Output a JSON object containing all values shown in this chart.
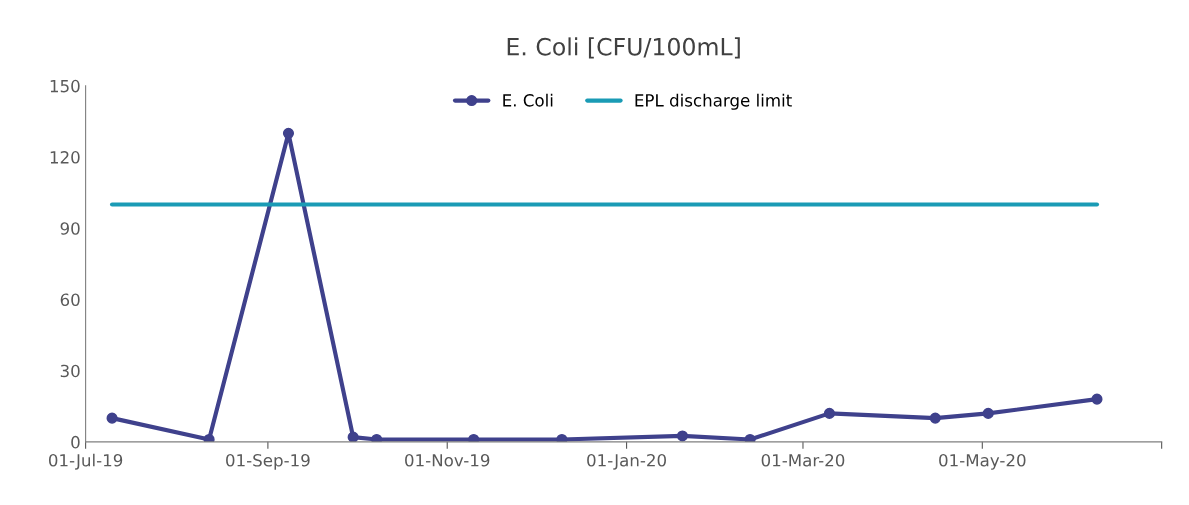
{
  "chart_data": {
    "type": "line",
    "title": "E. Coli [CFU/100mL]",
    "x": [
      "2019-07-10",
      "2019-08-12",
      "2019-09-08",
      "2019-09-30",
      "2019-10-08",
      "2019-11-10",
      "2019-12-10",
      "2020-01-20",
      "2020-02-12",
      "2020-03-10",
      "2020-04-15",
      "2020-05-03",
      "2020-06-09"
    ],
    "series": [
      {
        "name": "E. Coli",
        "color": "#3f418c",
        "marker": "circle",
        "values": [
          10,
          1,
          130,
          2,
          1,
          1,
          1,
          2.5,
          1,
          12,
          10,
          12,
          18
        ]
      },
      {
        "name": "EPL discharge limit",
        "color": "#1a9bb5",
        "marker": "none",
        "x": [
          "2019-07-10",
          "2020-06-09"
        ],
        "values": [
          100,
          100
        ]
      }
    ],
    "xlim": [
      "2019-07-01",
      "2020-07-01"
    ],
    "xticks": [
      {
        "value": "2019-07-01",
        "label": "01-Jul-19"
      },
      {
        "value": "2019-09-01",
        "label": "01-Sep-19"
      },
      {
        "value": "2019-11-01",
        "label": "01-Nov-19"
      },
      {
        "value": "2020-01-01",
        "label": "01-Jan-20"
      },
      {
        "value": "2020-03-01",
        "label": "01-Mar-20"
      },
      {
        "value": "2020-05-01",
        "label": "01-May-20"
      },
      {
        "value": "2020-07-01",
        "label": null
      }
    ],
    "ylim": [
      0,
      150
    ],
    "yticks": [
      0,
      30,
      60,
      90,
      120,
      150
    ],
    "grid": false,
    "legend": "top",
    "line_style": "solid"
  }
}
